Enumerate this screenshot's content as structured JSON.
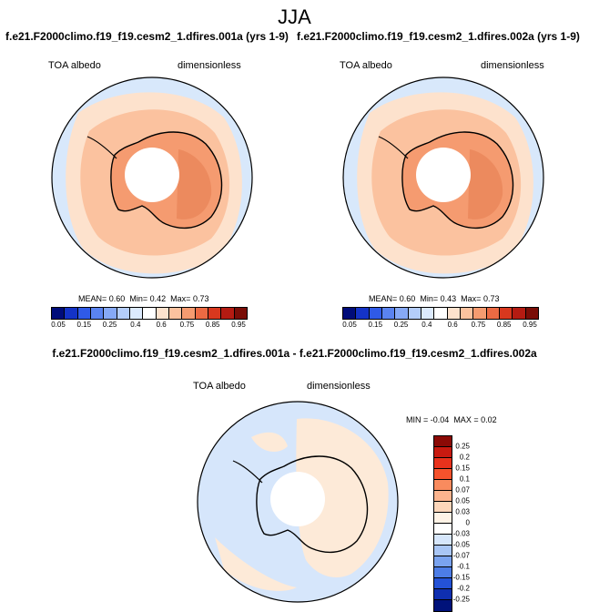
{
  "season": "JJA",
  "panels": [
    {
      "title": "f.e21.F2000climo.f19_f19.cesm2_1.dfires.001a (yrs 1-9)",
      "variable": "TOA albedo",
      "units": "dimensionless",
      "stats": {
        "mean_label": "MEAN=",
        "mean": "0.60",
        "min_label": "Min=",
        "min": "0.42",
        "max_label": "Max=",
        "max": "0.73"
      }
    },
    {
      "title": "f.e21.F2000climo.f19_f19.cesm2_1.dfires.002a (yrs 1-9)",
      "variable": "TOA albedo",
      "units": "dimensionless",
      "stats": {
        "mean_label": "MEAN=",
        "mean": "0.60",
        "min_label": "Min=",
        "min": "0.43",
        "max_label": "Max=",
        "max": "0.73"
      }
    }
  ],
  "colorbar": {
    "ticks": [
      "0.05",
      "0.15",
      "0.25",
      "0.4",
      "0.6",
      "0.75",
      "0.85",
      "0.95"
    ],
    "colors": [
      "#000c7a",
      "#1433c7",
      "#2f5ae8",
      "#5a83f0",
      "#86a9f6",
      "#b4cdfa",
      "#dceafd",
      "#ffffff",
      "#fde2cd",
      "#fbc29f",
      "#f59b70",
      "#ec6a43",
      "#d9381e",
      "#b51b12",
      "#7a0d07"
    ]
  },
  "difference": {
    "title": "f.e21.F2000climo.f19_f19.cesm2_1.dfires.001a - f.e21.F2000climo.f19_f19.cesm2_1.dfires.002a",
    "variable": "TOA albedo",
    "units": "dimensionless",
    "stats": {
      "min_label": "MIN =",
      "min": "-0.04",
      "max_label": "MAX =",
      "max": "0.02"
    },
    "colorbar": {
      "ticks": [
        "0.25",
        "0.2",
        "0.15",
        "0.1",
        "0.07",
        "0.05",
        "0.03",
        "0",
        "-0.03",
        "-0.05",
        "-0.07",
        "-0.1",
        "-0.15",
        "-0.2",
        "-0.25"
      ],
      "colors": [
        "#8b0a06",
        "#c81a10",
        "#e8321c",
        "#f5522c",
        "#f98b5e",
        "#fcb48e",
        "#fdd6ba",
        "#fff3e6",
        "#ffffff",
        "#d6e6fb",
        "#a9c6f5",
        "#7aa3ef",
        "#4d7de6",
        "#2452d6",
        "#0f2fb0",
        "#00127a"
      ]
    }
  }
}
